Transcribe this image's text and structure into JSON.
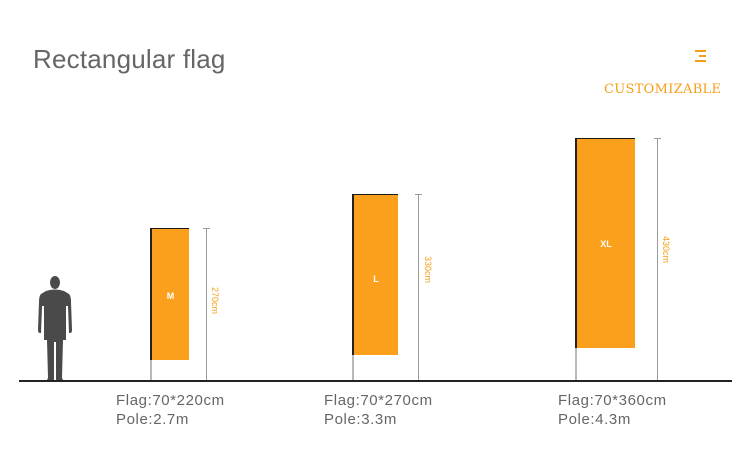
{
  "header": {
    "title": "Rectangular flag",
    "tagline": "CUSTOMIZABLE",
    "menu_icon": "menu-icon"
  },
  "colors": {
    "accent": "#f59e18",
    "flag": "#fba01c",
    "text": "#666666"
  },
  "flags": [
    {
      "size": "M",
      "height_label": "270cm",
      "flag_spec": "Flag:70*220cm",
      "pole_spec": "Pole:2.7m"
    },
    {
      "size": "L",
      "height_label": "330cm",
      "flag_spec": "Flag:70*270cm",
      "pole_spec": "Pole:3.3m"
    },
    {
      "size": "XL",
      "height_label": "430cm",
      "flag_spec": "Flag:70*360cm",
      "pole_spec": "Pole:4.3m"
    }
  ]
}
